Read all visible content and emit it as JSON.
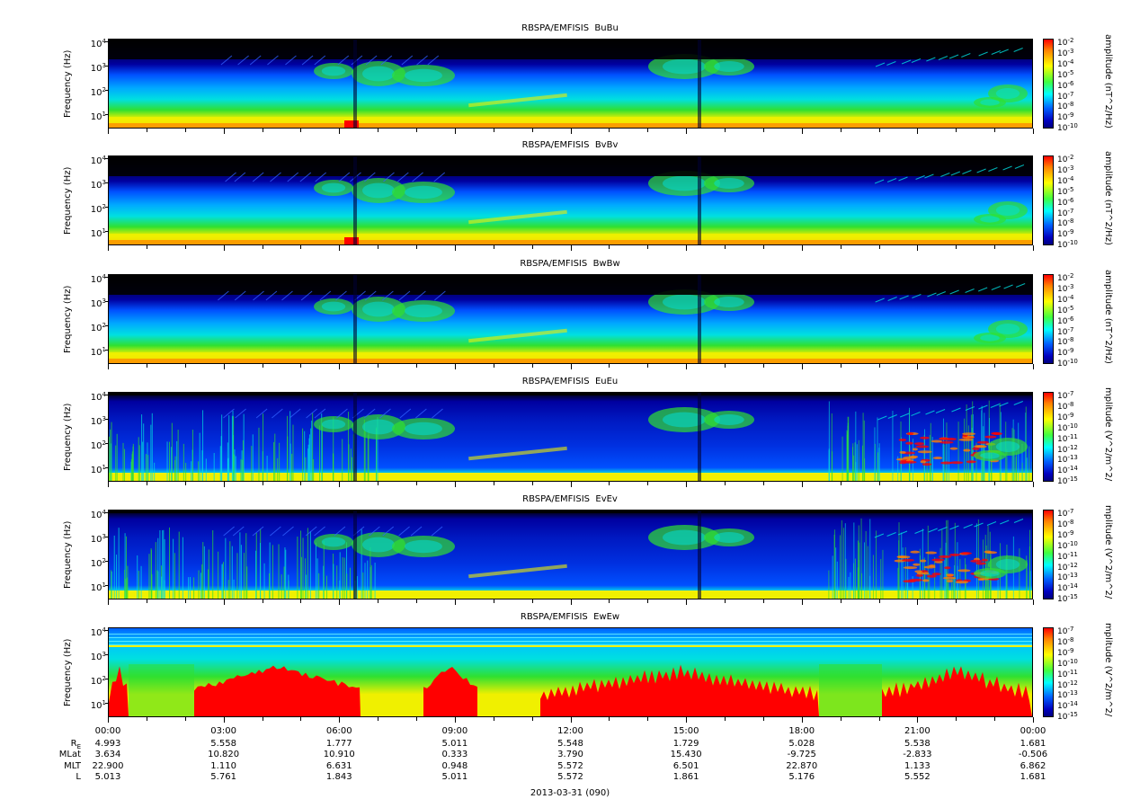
{
  "panels": [
    {
      "title": "RBSPA/EMFISIS  BuBu",
      "clabel": "amplitude (nT^2/Hz)",
      "ctick_exps": [
        "-2",
        "-3",
        "-4",
        "-5",
        "-6",
        "-7",
        "-8",
        "-9",
        "-10"
      ],
      "kind": "B"
    },
    {
      "title": "RBSPA/EMFISIS  BvBv",
      "clabel": "amplitude (nT^2/Hz)",
      "ctick_exps": [
        "-2",
        "-3",
        "-4",
        "-5",
        "-6",
        "-7",
        "-8",
        "-9",
        "-10"
      ],
      "kind": "B"
    },
    {
      "title": "RBSPA/EMFISIS  BwBw",
      "clabel": "amplitude (nT^2/Hz)",
      "ctick_exps": [
        "-2",
        "-3",
        "-4",
        "-5",
        "-6",
        "-7",
        "-8",
        "-9",
        "-10"
      ],
      "kind": "B"
    },
    {
      "title": "RBSPA/EMFISIS  EuEu",
      "clabel": "mplitude (V^2/m^2/",
      "ctick_exps": [
        "-7",
        "-8",
        "-9",
        "-10",
        "-11",
        "-12",
        "-13",
        "-14",
        "-15"
      ],
      "kind": "E"
    },
    {
      "title": "RBSPA/EMFISIS  EvEv",
      "clabel": "mplitude (V^2/m^2/",
      "ctick_exps": [
        "-7",
        "-8",
        "-9",
        "-10",
        "-11",
        "-12",
        "-13",
        "-14",
        "-15"
      ],
      "kind": "E"
    },
    {
      "title": "RBSPA/EMFISIS  EwEw",
      "clabel": "mplitude (V^2/m^2/",
      "ctick_exps": [
        "-7",
        "-8",
        "-9",
        "-10",
        "-11",
        "-12",
        "-13",
        "-14",
        "-15"
      ],
      "kind": "W"
    }
  ],
  "yaxis": {
    "label": "Frequency (Hz)",
    "tick_base": "10",
    "tick_exps": [
      "4",
      "3",
      "2",
      "1"
    ]
  },
  "ephemeris": {
    "time_labels": [
      "00:00",
      "03:00",
      "06:00",
      "09:00",
      "12:00",
      "15:00",
      "18:00",
      "21:00",
      "00:00"
    ],
    "rows": [
      {
        "name": "R",
        "sub": "E",
        "values": [
          "4.993",
          "5.558",
          "1.777",
          "5.011",
          "5.548",
          "1.729",
          "5.028",
          "5.538",
          "1.681"
        ]
      },
      {
        "name": "MLat",
        "sub": "",
        "values": [
          "3.634",
          "10.820",
          "10.910",
          "0.333",
          "3.790",
          "15.430",
          "-9.725",
          "-2.833",
          "-0.506"
        ]
      },
      {
        "name": "MLT",
        "sub": "",
        "values": [
          "22.900",
          "1.110",
          "6.631",
          "0.948",
          "5.572",
          "6.501",
          "22.870",
          "1.133",
          "6.862"
        ]
      },
      {
        "name": "L",
        "sub": "",
        "values": [
          "5.013",
          "5.761",
          "1.843",
          "5.011",
          "5.572",
          "1.861",
          "5.176",
          "5.552",
          "1.681"
        ]
      }
    ]
  },
  "date_label": "2013-03-31 (090)",
  "chart_data": [
    {
      "type": "heatmap",
      "title": "RBSPA/EMFISIS  BuBu",
      "xlabel": "",
      "ylabel": "Frequency (Hz)",
      "ylog": true,
      "yticks": [
        "10^1",
        "10^2",
        "10^3",
        "10^4"
      ],
      "x_range": [
        "2013-03-31 00:00",
        "2013-04-01 00:00"
      ],
      "colorbar": {
        "label": "amplitude (nT^2/Hz)",
        "log": true,
        "range": [
          "1e-10",
          "1e-2"
        ]
      }
    },
    {
      "type": "heatmap",
      "title": "RBSPA/EMFISIS  BvBv",
      "xlabel": "",
      "ylabel": "Frequency (Hz)",
      "ylog": true,
      "yticks": [
        "10^1",
        "10^2",
        "10^3",
        "10^4"
      ],
      "x_range": [
        "2013-03-31 00:00",
        "2013-04-01 00:00"
      ],
      "colorbar": {
        "label": "amplitude (nT^2/Hz)",
        "log": true,
        "range": [
          "1e-10",
          "1e-2"
        ]
      }
    },
    {
      "type": "heatmap",
      "title": "RBSPA/EMFISIS  BwBw",
      "xlabel": "",
      "ylabel": "Frequency (Hz)",
      "ylog": true,
      "yticks": [
        "10^1",
        "10^2",
        "10^3",
        "10^4"
      ],
      "x_range": [
        "2013-03-31 00:00",
        "2013-04-01 00:00"
      ],
      "colorbar": {
        "label": "amplitude (nT^2/Hz)",
        "log": true,
        "range": [
          "1e-10",
          "1e-2"
        ]
      }
    },
    {
      "type": "heatmap",
      "title": "RBSPA/EMFISIS  EuEu",
      "xlabel": "",
      "ylabel": "Frequency (Hz)",
      "ylog": true,
      "yticks": [
        "10^1",
        "10^2",
        "10^3",
        "10^4"
      ],
      "x_range": [
        "2013-03-31 00:00",
        "2013-04-01 00:00"
      ],
      "colorbar": {
        "label": "mplitude (V^2/m^2/",
        "log": true,
        "range": [
          "1e-15",
          "1e-7"
        ]
      }
    },
    {
      "type": "heatmap",
      "title": "RBSPA/EMFISIS  EvEv",
      "xlabel": "",
      "ylabel": "Frequency (Hz)",
      "ylog": true,
      "yticks": [
        "10^1",
        "10^2",
        "10^3",
        "10^4"
      ],
      "x_range": [
        "2013-03-31 00:00",
        "2013-04-01 00:00"
      ],
      "colorbar": {
        "label": "mplitude (V^2/m^2/",
        "log": true,
        "range": [
          "1e-15",
          "1e-7"
        ]
      }
    },
    {
      "type": "heatmap",
      "title": "RBSPA/EMFISIS  EwEw",
      "xlabel": "2013-03-31 (090)",
      "ylabel": "Frequency (Hz)",
      "ylog": true,
      "yticks": [
        "10^1",
        "10^2",
        "10^3",
        "10^4"
      ],
      "x_range": [
        "2013-03-31 00:00",
        "2013-04-01 00:00"
      ],
      "colorbar": {
        "label": "mplitude (V^2/m^2/",
        "log": true,
        "range": [
          "1e-15",
          "1e-7"
        ]
      }
    }
  ],
  "colors": {
    "low": "#0000a0",
    "mid_blue": "#0050ff",
    "cyan": "#00e0e0",
    "green": "#30e030",
    "yellow": "#f0f000",
    "orange": "#ff8000",
    "red": "#ff0000",
    "background": "#000000"
  }
}
